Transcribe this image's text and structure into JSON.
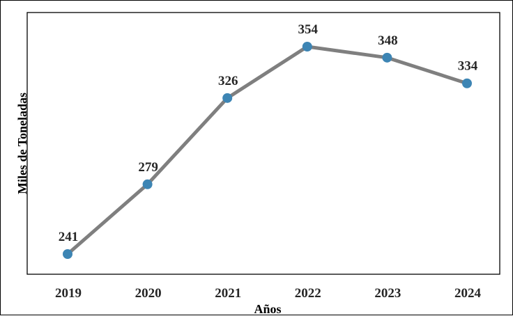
{
  "chart_data": {
    "type": "line",
    "x": [
      "2019",
      "2020",
      "2021",
      "2022",
      "2023",
      "2024"
    ],
    "series": [
      {
        "values": [
          241,
          279,
          326,
          354,
          348,
          334
        ]
      }
    ],
    "data_labels": [
      "241",
      "279",
      "326",
      "354",
      "348",
      "334"
    ],
    "xlabel": "Años",
    "ylabel": "Miles de Toneladas",
    "ylim": [
      225,
      360
    ],
    "grid": false,
    "legend": "none",
    "colors": {
      "line": "#7f7f7f",
      "marker": "#3d85b4"
    }
  }
}
